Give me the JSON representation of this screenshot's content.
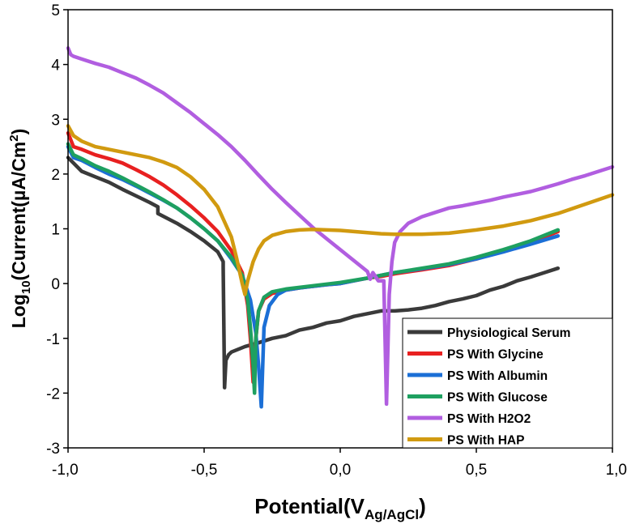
{
  "chart_data": {
    "type": "line",
    "title": "",
    "xlabel": {
      "main": "Potential(V",
      "sub": "Ag/AgCl",
      "close": ")"
    },
    "ylabel": {
      "pre": "Log",
      "sub": "10",
      "mid": "(Current(µA/Cm",
      "sup": "2",
      "close": ")"
    },
    "xlim": [
      -1.0,
      1.0
    ],
    "ylim": [
      -3,
      5
    ],
    "xticks": [
      {
        "value": -1.0,
        "label": "-1,0"
      },
      {
        "value": -0.5,
        "label": "-0,5"
      },
      {
        "value": 0.0,
        "label": "0,0"
      },
      {
        "value": 0.5,
        "label": "0,5"
      },
      {
        "value": 1.0,
        "label": "1,0"
      }
    ],
    "yticks": [
      {
        "value": -3,
        "label": "-3"
      },
      {
        "value": -2,
        "label": "-2"
      },
      {
        "value": -1,
        "label": "-1"
      },
      {
        "value": 0,
        "label": "0"
      },
      {
        "value": 1,
        "label": "1"
      },
      {
        "value": 2,
        "label": "2"
      },
      {
        "value": 3,
        "label": "3"
      },
      {
        "value": 4,
        "label": "4"
      },
      {
        "value": 5,
        "label": "5"
      }
    ],
    "legend_position": "bottom-right",
    "series": [
      {
        "name": "Physiological Serum",
        "color": "#3a3a3a",
        "x": [
          -1.0,
          -0.95,
          -0.9,
          -0.85,
          -0.8,
          -0.75,
          -0.7,
          -0.67,
          -0.67,
          -0.6,
          -0.55,
          -0.5,
          -0.45,
          -0.43,
          -0.43,
          -0.425,
          -0.42,
          -0.41,
          -0.4,
          -0.35,
          -0.3,
          -0.25,
          -0.2,
          -0.15,
          -0.1,
          -0.05,
          0.0,
          0.05,
          0.1,
          0.15,
          0.2,
          0.25,
          0.3,
          0.35,
          0.4,
          0.45,
          0.5,
          0.55,
          0.6,
          0.65,
          0.7,
          0.75,
          0.8
        ],
        "y": [
          2.3,
          2.05,
          1.95,
          1.85,
          1.72,
          1.6,
          1.48,
          1.4,
          1.28,
          1.1,
          0.95,
          0.78,
          0.58,
          0.4,
          0.3,
          -1.9,
          -1.4,
          -1.3,
          -1.25,
          -1.15,
          -1.08,
          -1.0,
          -0.95,
          -0.85,
          -0.8,
          -0.72,
          -0.68,
          -0.6,
          -0.55,
          -0.5,
          -0.5,
          -0.48,
          -0.45,
          -0.4,
          -0.33,
          -0.28,
          -0.22,
          -0.12,
          -0.05,
          0.05,
          0.12,
          0.2,
          0.28
        ]
      },
      {
        "name": "PS With Glycine",
        "color": "#e82020",
        "x": [
          -1.0,
          -0.98,
          -0.95,
          -0.9,
          -0.85,
          -0.8,
          -0.75,
          -0.7,
          -0.65,
          -0.6,
          -0.55,
          -0.5,
          -0.45,
          -0.4,
          -0.36,
          -0.34,
          -0.33,
          -0.32,
          -0.31,
          -0.3,
          -0.28,
          -0.25,
          -0.2,
          -0.15,
          -0.1,
          -0.05,
          0.0,
          0.05,
          0.1,
          0.15,
          0.2,
          0.3,
          0.4,
          0.5,
          0.6,
          0.7,
          0.8
        ],
        "y": [
          2.75,
          2.5,
          2.45,
          2.35,
          2.28,
          2.2,
          2.08,
          1.95,
          1.8,
          1.62,
          1.42,
          1.2,
          0.95,
          0.6,
          0.2,
          -0.4,
          -1.0,
          -1.8,
          -1.0,
          -0.5,
          -0.28,
          -0.18,
          -0.12,
          -0.08,
          -0.05,
          -0.02,
          0.0,
          0.05,
          0.1,
          0.13,
          0.18,
          0.25,
          0.33,
          0.45,
          0.6,
          0.75,
          0.95
        ]
      },
      {
        "name": "PS With Albumin",
        "color": "#1b6fd6",
        "x": [
          -1.0,
          -0.98,
          -0.95,
          -0.9,
          -0.85,
          -0.8,
          -0.75,
          -0.7,
          -0.65,
          -0.6,
          -0.55,
          -0.5,
          -0.45,
          -0.4,
          -0.36,
          -0.33,
          -0.31,
          -0.3,
          -0.29,
          -0.28,
          -0.26,
          -0.23,
          -0.2,
          -0.15,
          -0.1,
          -0.05,
          0.0,
          0.05,
          0.1,
          0.15,
          0.2,
          0.3,
          0.4,
          0.5,
          0.6,
          0.7,
          0.8
        ],
        "y": [
          2.5,
          2.3,
          2.25,
          2.12,
          2.0,
          1.9,
          1.78,
          1.65,
          1.52,
          1.38,
          1.2,
          1.0,
          0.78,
          0.45,
          0.15,
          -0.3,
          -0.9,
          -1.5,
          -2.25,
          -0.8,
          -0.4,
          -0.2,
          -0.12,
          -0.08,
          -0.05,
          -0.02,
          0.0,
          0.05,
          0.1,
          0.15,
          0.2,
          0.27,
          0.35,
          0.45,
          0.58,
          0.72,
          0.87
        ]
      },
      {
        "name": "PS With Glucose",
        "color": "#1ea060",
        "x": [
          -1.0,
          -0.98,
          -0.95,
          -0.9,
          -0.85,
          -0.8,
          -0.75,
          -0.7,
          -0.65,
          -0.6,
          -0.55,
          -0.5,
          -0.45,
          -0.4,
          -0.36,
          -0.34,
          -0.33,
          -0.32,
          -0.315,
          -0.31,
          -0.3,
          -0.28,
          -0.25,
          -0.2,
          -0.15,
          -0.1,
          -0.05,
          0.0,
          0.05,
          0.1,
          0.15,
          0.2,
          0.3,
          0.4,
          0.5,
          0.6,
          0.7,
          0.8
        ],
        "y": [
          2.55,
          2.35,
          2.28,
          2.15,
          2.05,
          1.93,
          1.8,
          1.67,
          1.53,
          1.38,
          1.2,
          1.0,
          0.78,
          0.48,
          0.15,
          -0.3,
          -0.8,
          -1.5,
          -2.0,
          -1.0,
          -0.5,
          -0.25,
          -0.15,
          -0.1,
          -0.07,
          -0.04,
          -0.01,
          0.02,
          0.06,
          0.1,
          0.15,
          0.2,
          0.28,
          0.36,
          0.48,
          0.62,
          0.78,
          0.98
        ]
      },
      {
        "name": "PS With H2O2",
        "color": "#b15ee0",
        "x": [
          -1.0,
          -0.99,
          -0.98,
          -0.95,
          -0.9,
          -0.85,
          -0.8,
          -0.75,
          -0.7,
          -0.65,
          -0.6,
          -0.55,
          -0.5,
          -0.45,
          -0.4,
          -0.35,
          -0.3,
          -0.25,
          -0.2,
          -0.15,
          -0.1,
          -0.05,
          0.0,
          0.05,
          0.1,
          0.11,
          0.12,
          0.14,
          0.16,
          0.17,
          0.18,
          0.19,
          0.2,
          0.22,
          0.25,
          0.3,
          0.35,
          0.4,
          0.45,
          0.5,
          0.55,
          0.6,
          0.65,
          0.7,
          0.75,
          0.8,
          0.85,
          0.9,
          0.95,
          1.0
        ],
        "y": [
          4.3,
          4.18,
          4.15,
          4.1,
          4.02,
          3.95,
          3.85,
          3.75,
          3.62,
          3.48,
          3.3,
          3.12,
          2.92,
          2.72,
          2.5,
          2.25,
          1.98,
          1.72,
          1.48,
          1.25,
          1.02,
          0.82,
          0.62,
          0.42,
          0.22,
          0.08,
          0.2,
          0.05,
          0.05,
          -2.2,
          -0.2,
          0.4,
          0.75,
          0.95,
          1.1,
          1.22,
          1.3,
          1.38,
          1.42,
          1.47,
          1.52,
          1.58,
          1.63,
          1.68,
          1.75,
          1.82,
          1.9,
          1.97,
          2.05,
          2.13
        ]
      },
      {
        "name": "PS With HAP",
        "color": "#d19a10",
        "x": [
          -1.0,
          -0.98,
          -0.95,
          -0.9,
          -0.85,
          -0.8,
          -0.75,
          -0.7,
          -0.65,
          -0.6,
          -0.55,
          -0.5,
          -0.45,
          -0.4,
          -0.38,
          -0.36,
          -0.35,
          -0.34,
          -0.32,
          -0.3,
          -0.28,
          -0.25,
          -0.2,
          -0.15,
          -0.1,
          -0.05,
          0.0,
          0.05,
          0.1,
          0.15,
          0.2,
          0.25,
          0.3,
          0.4,
          0.5,
          0.6,
          0.7,
          0.8,
          0.9,
          1.0
        ],
        "y": [
          2.88,
          2.7,
          2.6,
          2.5,
          2.45,
          2.4,
          2.35,
          2.3,
          2.22,
          2.12,
          1.95,
          1.72,
          1.4,
          0.85,
          0.45,
          0.0,
          -0.2,
          0.05,
          0.4,
          0.63,
          0.78,
          0.88,
          0.95,
          0.98,
          0.99,
          0.98,
          0.97,
          0.95,
          0.93,
          0.91,
          0.9,
          0.9,
          0.9,
          0.92,
          0.98,
          1.05,
          1.15,
          1.28,
          1.45,
          1.62
        ]
      }
    ]
  }
}
